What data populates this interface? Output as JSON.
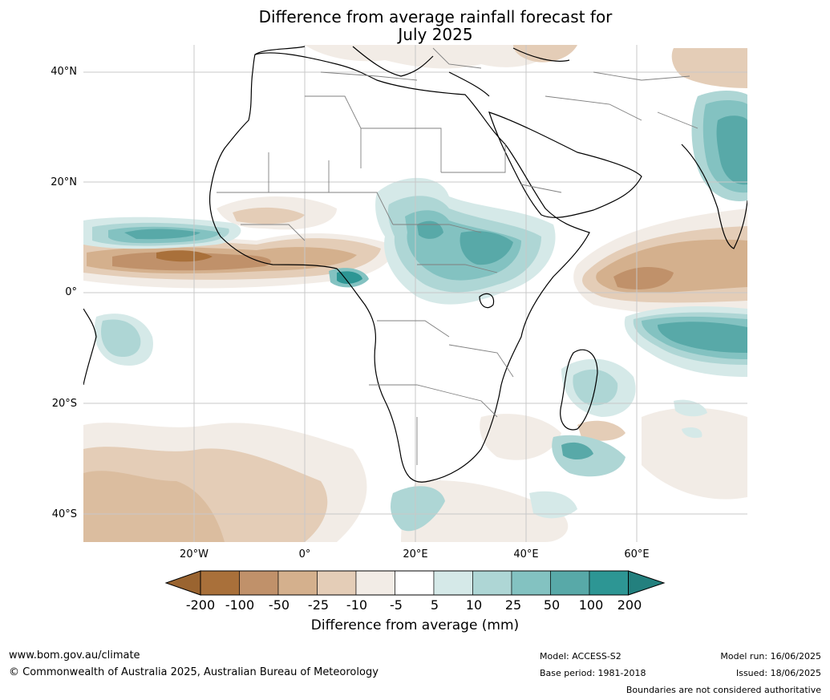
{
  "title": {
    "line1": "Difference from average rainfall forecast for",
    "line2": "July 2025"
  },
  "map": {
    "lat_labels": [
      "40°N",
      "20°N",
      "0°",
      "20°S",
      "40°S"
    ],
    "lon_labels": [
      "20°W",
      "0°",
      "20°E",
      "40°E",
      "60°E"
    ]
  },
  "colorbar": {
    "ticks": [
      "-200",
      "-100",
      "-50",
      "-25",
      "-10",
      "-5",
      "5",
      "10",
      "25",
      "50",
      "100",
      "200"
    ],
    "colors": [
      "#a9703a",
      "#c0916a",
      "#d4b08d",
      "#e4cdb7",
      "#f2ece6",
      "#ffffff",
      "#d5e9e8",
      "#aed6d5",
      "#83c2c1",
      "#58a9a8",
      "#2d9694"
    ],
    "under_color": "#9a6430",
    "over_color": "#23807e",
    "title": "Difference from average (mm)"
  },
  "footer": {
    "website": "www.bom.gov.au/climate",
    "copyright": "© Commonwealth of Australia 2025, Australian Bureau of Meteorology",
    "model": "Model: ACCESS-S2",
    "base_period": "Base period: 1981-2018",
    "model_run": "Model run: 16/06/2025",
    "issued": "Issued: 18/06/2025",
    "disclaimer": "Boundaries are not considered authoritative"
  }
}
